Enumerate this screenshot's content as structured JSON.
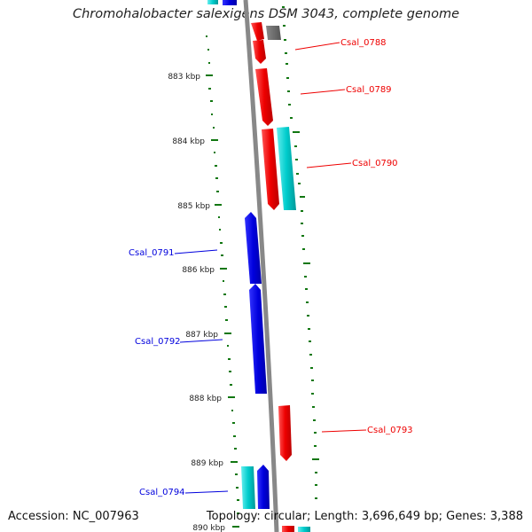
{
  "title": "Chromohalobacter salexigens DSM 3043, complete genome",
  "footer": {
    "accession": "Accession: NC_007963",
    "summary": "Topology: circular; Length: 3,696,649 bp; Genes: 3,388"
  },
  "scale_labels": [
    "883 kbp",
    "884 kbp",
    "885 kbp",
    "886 kbp",
    "887 kbp",
    "888 kbp",
    "889 kbp",
    "890 kbp"
  ],
  "gene_labels": [
    "Csal_0788",
    "Csal_0789",
    "Csal_0790",
    "Csal_0791",
    "Csal_0792",
    "Csal_0793",
    "Csal_0794"
  ],
  "colors": {
    "forward_gene": "#ee0000",
    "reverse_gene": "#0000dd",
    "rna_gene": "#00cccc",
    "other_feature": "#666666",
    "backbone": "#888888",
    "gc_ticks": "#117711"
  }
}
